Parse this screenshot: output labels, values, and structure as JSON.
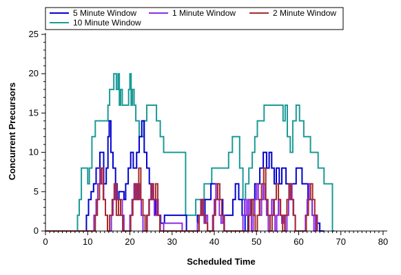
{
  "chart_data": {
    "type": "line",
    "xlabel": "Scheduled Time",
    "ylabel": "Concurrent Precursors",
    "xlim": [
      0,
      80
    ],
    "ylim": [
      0,
      25
    ],
    "xticks": [
      0,
      10,
      20,
      30,
      40,
      50,
      60,
      70,
      80
    ],
    "yticks": [
      0,
      5,
      10,
      15,
      20,
      25
    ],
    "grid": false,
    "legend_position": "top",
    "series": [
      {
        "name": "5 Minute Window",
        "color": "#0000cc",
        "step": true,
        "x": [
          0,
          9.7,
          10.2,
          10.8,
          11.4,
          12.0,
          12.9,
          13.8,
          14.4,
          14.8,
          15.1,
          15.5,
          16.0,
          16.6,
          17.0,
          17.4,
          18.6,
          19.0,
          19.6,
          20.2,
          20.8,
          21.6,
          22.2,
          22.8,
          23.4,
          24.0,
          24.6,
          25.2,
          26.0,
          27.3,
          28.2,
          29.0,
          33.4,
          36.0,
          37.8,
          38.4,
          39.2,
          40.0,
          40.8,
          42.0,
          43.4,
          44.4,
          45.0,
          45.8,
          46.6,
          47.3,
          48.0,
          48.8,
          49.6,
          50.8,
          51.6,
          52.4,
          53.0,
          53.6,
          54.2,
          54.7,
          55.4,
          56.0,
          57.0,
          58.0,
          59.4,
          60.8,
          62.2,
          63.2,
          64.0,
          65.0,
          66.0
        ],
        "values": [
          0,
          2,
          4,
          5,
          6,
          8,
          10,
          6,
          8,
          12,
          14,
          10,
          8,
          6,
          4,
          5,
          4,
          6,
          8,
          10,
          8,
          10,
          12,
          14,
          10,
          8,
          6,
          4,
          2,
          1,
          2,
          2,
          0,
          2,
          4,
          4,
          6,
          6,
          4,
          2,
          2,
          4,
          6,
          4,
          2,
          0,
          2,
          4,
          6,
          8,
          10,
          8,
          10,
          8,
          6,
          8,
          6,
          8,
          6,
          6,
          8,
          6,
          4,
          2,
          1,
          0,
          0
        ]
      },
      {
        "name": "1 Minute Window",
        "color": "#8a2be2",
        "step": true,
        "x": [
          0,
          11.5,
          12.0,
          12.4,
          12.9,
          13.3,
          13.8,
          14.2,
          14.7,
          15.6,
          16.0,
          16.5,
          16.9,
          17.3,
          17.8,
          18.2,
          18.6,
          20.0,
          20.5,
          21.0,
          21.4,
          21.8,
          22.3,
          22.7,
          23.1,
          24.0,
          24.5,
          25.0,
          25.4,
          25.8,
          26.3,
          26.7,
          27.2,
          28.0,
          32.4,
          36.0,
          36.4,
          36.8,
          37.2,
          37.6,
          38.0,
          38.4,
          39.6,
          40.0,
          40.4,
          40.8,
          41.2,
          41.6,
          42.0,
          42.4,
          46.8,
          47.2,
          47.6,
          48.0,
          48.4,
          48.8,
          49.2,
          49.6,
          50.0,
          50.4,
          50.8,
          51.2,
          51.6,
          52.0,
          52.4,
          52.8,
          53.2,
          53.6,
          54.0,
          54.4,
          54.8,
          55.2,
          55.6,
          56.0,
          56.4,
          56.8,
          57.2,
          57.6,
          58.0,
          58.4,
          58.8,
          59.2,
          61.6,
          62.0,
          62.4,
          62.8,
          63.2,
          63.6,
          64.0,
          64.4
        ],
        "values": [
          0,
          2,
          4,
          6,
          8,
          6,
          4,
          2,
          0,
          2,
          4,
          6,
          4,
          2,
          4,
          2,
          0,
          2,
          4,
          6,
          4,
          6,
          4,
          2,
          0,
          2,
          4,
          6,
          4,
          2,
          4,
          2,
          0,
          1,
          0,
          1,
          2,
          4,
          2,
          1,
          2,
          0,
          2,
          4,
          6,
          4,
          2,
          1,
          2,
          0,
          2,
          4,
          2,
          4,
          2,
          0,
          2,
          4,
          6,
          4,
          2,
          4,
          6,
          4,
          2,
          0,
          2,
          4,
          2,
          0,
          2,
          4,
          2,
          1,
          2,
          0,
          2,
          4,
          6,
          4,
          2,
          0,
          2,
          4,
          6,
          4,
          2,
          0,
          2,
          0
        ]
      },
      {
        "name": "2 Minute Window",
        "color": "#a52a2a",
        "step": true,
        "x": [
          0,
          11.8,
          12.3,
          12.8,
          13.2,
          13.7,
          14.2,
          14.7,
          15.2,
          15.8,
          16.3,
          16.8,
          17.3,
          17.8,
          18.3,
          20.2,
          20.7,
          21.2,
          21.7,
          22.1,
          22.6,
          23.1,
          23.6,
          24.1,
          24.6,
          25.1,
          25.6,
          26.1,
          26.6,
          27.1,
          27.6,
          36.4,
          36.9,
          37.4,
          37.9,
          38.4,
          39.8,
          40.3,
          40.8,
          41.3,
          41.8,
          42.3,
          48.2,
          48.7,
          49.2,
          49.7,
          50.2,
          50.7,
          51.2,
          51.7,
          52.2,
          52.7,
          53.2,
          53.7,
          54.2,
          54.7,
          55.2,
          55.7,
          56.2,
          56.7,
          57.2,
          57.7,
          58.2,
          58.7,
          59.2,
          61.8,
          62.3,
          62.8,
          63.3,
          63.8,
          64.3
        ],
        "values": [
          0,
          2,
          4,
          6,
          8,
          4,
          2,
          0,
          2,
          4,
          6,
          2,
          4,
          2,
          0,
          2,
          4,
          6,
          4,
          8,
          4,
          2,
          0,
          2,
          4,
          6,
          4,
          6,
          2,
          0,
          0,
          2,
          4,
          2,
          1,
          0,
          2,
          4,
          6,
          4,
          2,
          0,
          2,
          4,
          2,
          0,
          2,
          4,
          6,
          8,
          4,
          2,
          0,
          2,
          4,
          6,
          4,
          2,
          0,
          2,
          4,
          6,
          4,
          2,
          0,
          2,
          4,
          6,
          4,
          2,
          0
        ]
      },
      {
        "name": "10 Minute Window",
        "color": "#1a9a96",
        "step": true,
        "x": [
          0,
          7.6,
          8.0,
          8.5,
          10.0,
          10.4,
          11.0,
          11.8,
          12.5,
          14.8,
          15.2,
          16.2,
          16.8,
          17.2,
          17.5,
          17.8,
          18.2,
          19.0,
          19.7,
          20.0,
          20.3,
          20.6,
          21.0,
          21.4,
          22.2,
          23.3,
          24.0,
          24.8,
          25.5,
          26.3,
          27.2,
          28.0,
          33.2,
          35.0,
          35.6,
          36.8,
          37.6,
          38.4,
          39.4,
          40.8,
          42.0,
          43.4,
          44.3,
          45.2,
          46.0,
          46.8,
          47.4,
          48.2,
          49.0,
          49.6,
          50.2,
          51.8,
          53.0,
          54.2,
          55.0,
          55.6,
          56.3,
          56.8,
          57.3,
          58.0,
          58.6,
          59.4,
          60.2,
          61.2,
          62.8,
          64.6,
          66.0,
          68.0,
          68.4
        ],
        "values": [
          0,
          2,
          4,
          8,
          6,
          8,
          12,
          14,
          14,
          16,
          18,
          20,
          18,
          20,
          16,
          18,
          16,
          16,
          18,
          20,
          16,
          18,
          16,
          14,
          12,
          14,
          16,
          16,
          16,
          14,
          12,
          10,
          2,
          2,
          4,
          4,
          6,
          6,
          8,
          8,
          8,
          10,
          12,
          12,
          8,
          4,
          6,
          8,
          10,
          12,
          14,
          16,
          16,
          16,
          16,
          16,
          14,
          16,
          12,
          10,
          14,
          16,
          14,
          12,
          10,
          8,
          6,
          0,
          0
        ]
      }
    ]
  }
}
